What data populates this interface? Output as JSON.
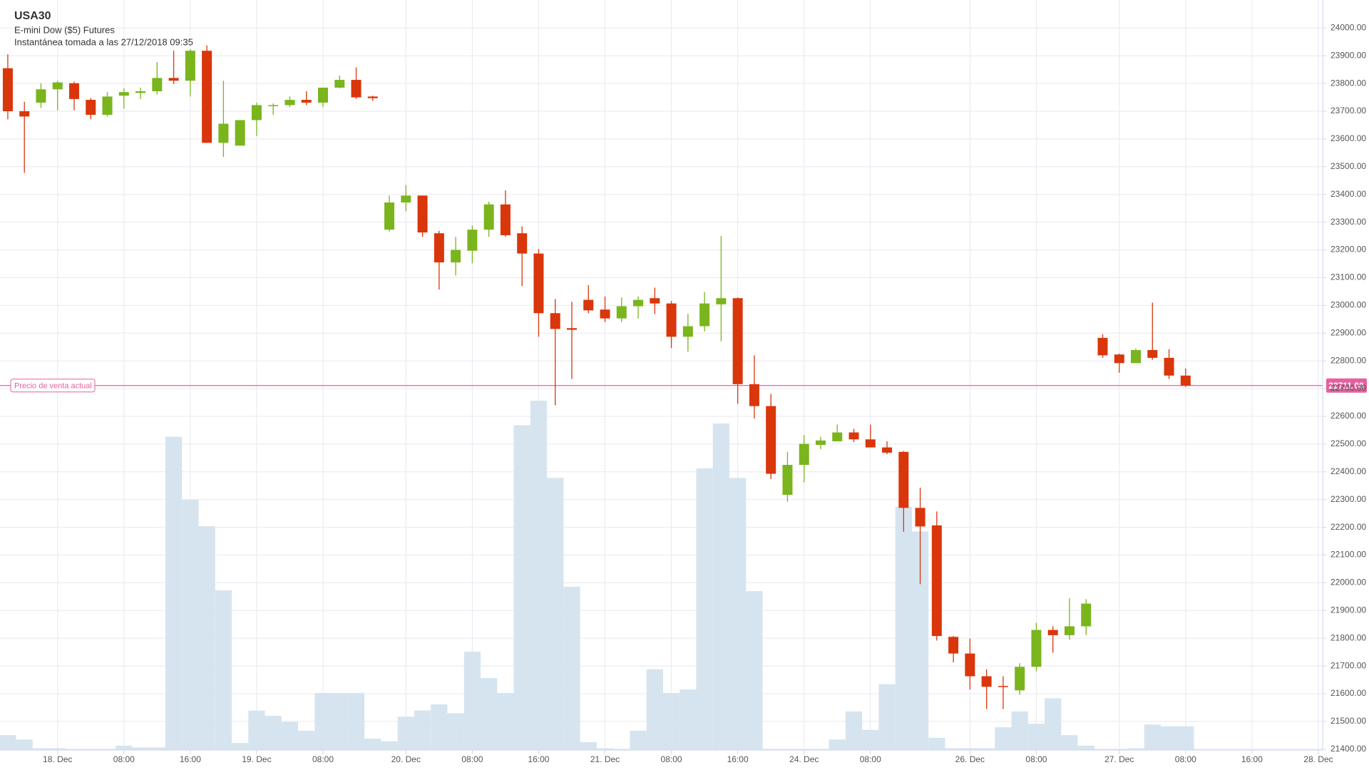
{
  "chart_data": {
    "type": "candlestick",
    "title": "USA30",
    "subtitle": "E-mini Dow ($5) Futures",
    "annotation": "Instantánea tomada a las 27/12/2018 09:35",
    "categories": [
      null,
      null,
      null,
      null,
      null,
      null,
      null,
      null,
      null,
      null,
      null,
      null,
      null,
      null,
      null,
      null,
      null,
      null,
      null,
      null,
      null,
      null,
      null,
      null,
      null,
      null,
      null,
      null,
      null,
      null,
      null,
      null,
      null,
      null,
      null,
      null,
      null,
      null,
      null,
      null,
      null,
      null,
      null,
      null,
      null,
      null,
      null,
      null,
      null,
      null,
      null,
      null,
      null,
      null,
      null,
      null,
      null,
      null,
      null,
      null,
      null,
      null,
      null,
      null,
      null,
      null,
      null,
      null,
      null,
      null,
      null,
      null
    ],
    "open": [
      23855,
      23700,
      23731,
      23779,
      23801,
      23741,
      23687,
      23756,
      23766,
      23772,
      23820,
      23810,
      23918,
      23586,
      23576,
      23668,
      23719,
      23722,
      23741,
      23731,
      23785,
      23813,
      23753,
      23273,
      23371,
      23396,
      23260,
      23155,
      23197,
      23273,
      23364,
      23260,
      23187,
      22972,
      22918,
      23020,
      22985,
      22953,
      22997,
      23026,
      23007,
      22887,
      22925,
      23004,
      23026,
      22716,
      22637,
      22317,
      22425,
      22497,
      22510,
      22542,
      22517,
      22488,
      22472,
      22270,
      22207,
      21805,
      21745,
      21663,
      21628,
      21612,
      21697,
      21830,
      21811,
      21843,
      22883,
      22823,
      22792,
      22839,
      22811,
      22747
    ],
    "high": [
      23905,
      23734,
      23801,
      23810,
      23807,
      23747,
      23769,
      23782,
      23785,
      23877,
      23918,
      23924,
      23937,
      23810,
      23668,
      23731,
      23728,
      23753,
      23772,
      23785,
      23829,
      23858,
      23756,
      23396,
      23434,
      23396,
      23269,
      23247,
      23288,
      23374,
      23415,
      23285,
      23203,
      23023,
      23013,
      23073,
      23032,
      23029,
      23032,
      23064,
      23016,
      22969,
      23048,
      23250,
      23029,
      22820,
      22681,
      22472,
      22532,
      22526,
      22570,
      22555,
      22570,
      22510,
      22475,
      22343,
      22257,
      21808,
      21799,
      21688,
      21663,
      21710,
      21856,
      21843,
      21944,
      21941,
      22896,
      22826,
      22845,
      23010,
      22842,
      22773
    ],
    "low": [
      23671,
      23478,
      23712,
      23703,
      23703,
      23671,
      23681,
      23709,
      23744,
      23760,
      23798,
      23753,
      23586,
      23535,
      23576,
      23611,
      23687,
      23715,
      23722,
      23715,
      23782,
      23744,
      23737,
      23266,
      23339,
      23247,
      23057,
      23108,
      23152,
      23247,
      23247,
      23070,
      22887,
      22640,
      22735,
      22972,
      22940,
      22940,
      22953,
      22969,
      22846,
      22833,
      22906,
      22871,
      22646,
      22592,
      22374,
      22292,
      22362,
      22482,
      22510,
      22507,
      22488,
      22463,
      22184,
      21995,
      21792,
      21713,
      21615,
      21545,
      21545,
      21596,
      21681,
      21748,
      21795,
      21811,
      22811,
      22757,
      22792,
      22804,
      22735,
      22706
    ],
    "close": [
      23700,
      23681,
      23779,
      23804,
      23744,
      23687,
      23753,
      23769,
      23772,
      23820,
      23810,
      23918,
      23586,
      23655,
      23668,
      23722,
      23722,
      23741,
      23731,
      23785,
      23813,
      23750,
      23747,
      23371,
      23396,
      23263,
      23155,
      23200,
      23273,
      23364,
      23253,
      23187,
      22972,
      22915,
      22912,
      22982,
      22953,
      22997,
      23020,
      23007,
      22887,
      22925,
      23007,
      23026,
      22716,
      22637,
      22393,
      22425,
      22501,
      22513,
      22542,
      22517,
      22488,
      22469,
      22270,
      22203,
      21808,
      21745,
      21663,
      21625,
      21625,
      21697,
      21830,
      21811,
      21843,
      21925,
      22820,
      22792,
      22839,
      22811,
      22747,
      22711
    ],
    "volume": [
      17,
      12,
      2,
      2,
      1,
      1,
      1,
      5,
      3,
      3,
      357,
      285,
      255,
      182,
      8,
      45,
      39,
      32,
      22,
      65,
      65,
      65,
      13,
      10,
      38,
      45,
      52,
      42,
      112,
      82,
      65,
      370,
      398,
      310,
      186,
      9,
      2,
      1,
      22,
      92,
      65,
      69,
      321,
      372,
      310,
      181,
      1,
      1,
      1,
      1,
      12,
      44,
      23,
      75,
      277,
      249,
      14,
      2,
      2,
      2,
      26,
      44,
      30,
      59,
      17,
      5,
      1,
      1,
      2,
      29,
      27,
      27
    ],
    "up_color": "#7ab51d",
    "down_color": "#d9360b",
    "volume_color": "#d6e4ef",
    "grid": true,
    "ylim": [
      21397,
      24101
    ],
    "yticks": [
      {
        "value": 21400,
        "label": "21400.00"
      },
      {
        "value": 21500,
        "label": "21500.00"
      },
      {
        "value": 21600,
        "label": "21600.00"
      },
      {
        "value": 21700,
        "label": "21700.00"
      },
      {
        "value": 21800,
        "label": "21800.00"
      },
      {
        "value": 21900,
        "label": "21900.00"
      },
      {
        "value": 22000,
        "label": "22000.00"
      },
      {
        "value": 22100,
        "label": "22100.00"
      },
      {
        "value": 22200,
        "label": "22200.00"
      },
      {
        "value": 22300,
        "label": "22300.00"
      },
      {
        "value": 22400,
        "label": "22400.00"
      },
      {
        "value": 22500,
        "label": "22500.00"
      },
      {
        "value": 22600,
        "label": "22600.00"
      },
      {
        "value": 22700,
        "label": "22700.00"
      },
      {
        "value": 22800,
        "label": "22800.00"
      },
      {
        "value": 22900,
        "label": "22900.00"
      },
      {
        "value": 23000,
        "label": "23000.00"
      },
      {
        "value": 23100,
        "label": "23100.00"
      },
      {
        "value": 23200,
        "label": "23200.00"
      },
      {
        "value": 23300,
        "label": "23300.00"
      },
      {
        "value": 23400,
        "label": "23400.00"
      },
      {
        "value": 23500,
        "label": "23500.00"
      },
      {
        "value": 23600,
        "label": "23600.00"
      },
      {
        "value": 23700,
        "label": "23700.00"
      },
      {
        "value": 23800,
        "label": "23800.00"
      },
      {
        "value": 23900,
        "label": "23900.00"
      },
      {
        "value": 24000,
        "label": "24000.00"
      }
    ],
    "xlim": [
      -0.47,
      79.26
    ],
    "xticks": [
      {
        "value": 3,
        "label": "18. Dec"
      },
      {
        "value": 7,
        "label": "08:00"
      },
      {
        "value": 11,
        "label": "16:00"
      },
      {
        "value": 15,
        "label": "19. Dec"
      },
      {
        "value": 19,
        "label": "08:00"
      },
      {
        "value": 24,
        "label": "20. Dec"
      },
      {
        "value": 28,
        "label": "08:00"
      },
      {
        "value": 32,
        "label": "16:00"
      },
      {
        "value": 36,
        "label": "21. Dec"
      },
      {
        "value": 40,
        "label": "08:00"
      },
      {
        "value": 44,
        "label": "16:00"
      },
      {
        "value": 48,
        "label": "24. Dec"
      },
      {
        "value": 52,
        "label": "08:00"
      },
      {
        "value": 58,
        "label": "26. Dec"
      },
      {
        "value": 62,
        "label": "08:00"
      },
      {
        "value": 67,
        "label": "27. Dec"
      },
      {
        "value": 71,
        "label": "08:00"
      },
      {
        "value": 75,
        "label": "16:00"
      },
      {
        "value": 79,
        "label": "28. Dec"
      }
    ],
    "current_price": {
      "name": "Precio de venta actual",
      "value": 22711,
      "label": "22711.00",
      "color": "#e6609f"
    }
  }
}
